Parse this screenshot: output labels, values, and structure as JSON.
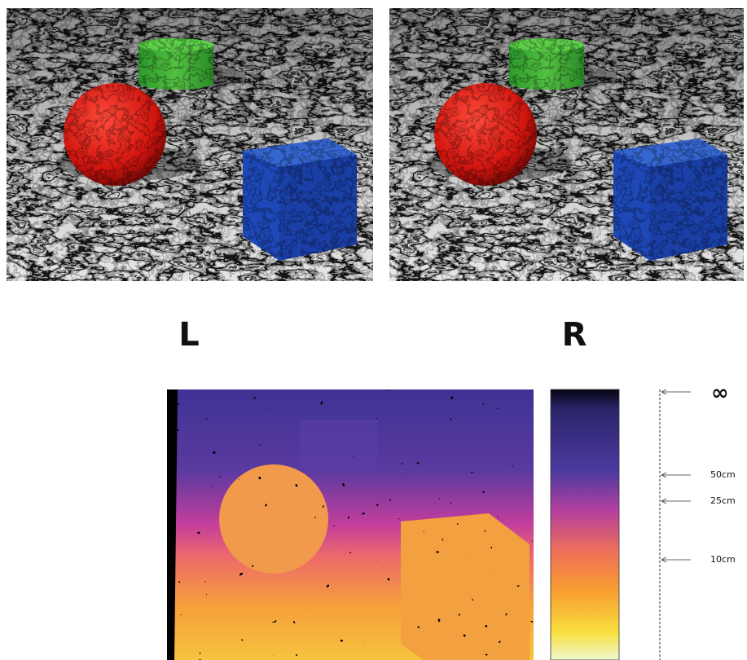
{
  "labels": {
    "left": "L",
    "right": "R"
  },
  "depth_scale": {
    "labels": [
      "∞",
      "50cm",
      "25cm",
      "10cm"
    ]
  }
}
